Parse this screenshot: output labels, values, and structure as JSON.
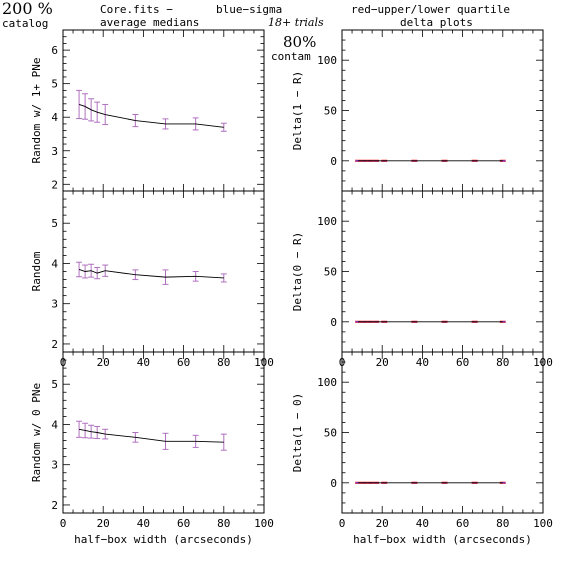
{
  "header": {
    "percent": "200 %",
    "catalog": "catalog",
    "file": "Core.fits  −",
    "medians": "average medians",
    "blue_label": "blue−sigma",
    "red_label": "red−upper/lower quartile",
    "trials": "18+ trials",
    "delta_title": "delta plots",
    "contam_pct": "80%",
    "contam_label": "contam"
  },
  "colors": {
    "blue": "#3a3aff",
    "red": "#ff2a2a",
    "errorbar": "#b070c0",
    "line": "#000000"
  },
  "chart_data": [
    {
      "id": "left-top",
      "type": "line",
      "ylabel": "Random w/ 1+ PNe",
      "xlabel": "",
      "xlim": [
        0,
        100
      ],
      "ylim": [
        1.8,
        6.6
      ],
      "xticks": [],
      "yticks": [
        2,
        3,
        4,
        5,
        6
      ],
      "xticklabels": [],
      "yticklabels": [
        "2",
        "3",
        "4",
        "5",
        "6"
      ],
      "x": [
        8,
        11,
        14,
        17,
        21,
        36,
        51,
        66,
        80
      ],
      "y": [
        4.38,
        4.32,
        4.22,
        4.15,
        4.08,
        3.9,
        3.8,
        3.8,
        3.7
      ],
      "err": [
        0.42,
        0.38,
        0.33,
        0.3,
        0.3,
        0.18,
        0.15,
        0.18,
        0.12
      ]
    },
    {
      "id": "left-mid",
      "type": "line",
      "ylabel": "Random",
      "xlabel": "",
      "xlim": [
        0,
        100
      ],
      "ylim": [
        1.8,
        5.8
      ],
      "xticks": [
        0,
        20,
        40,
        60,
        80,
        100
      ],
      "yticks": [
        2,
        3,
        4,
        5
      ],
      "xticklabels": [
        "0",
        "20",
        "40",
        "60",
        "80",
        "100"
      ],
      "yticklabels": [
        "2",
        "3",
        "4",
        "5"
      ],
      "x": [
        8,
        11,
        14,
        17,
        21,
        36,
        51,
        66,
        80
      ],
      "y": [
        3.85,
        3.8,
        3.82,
        3.76,
        3.82,
        3.72,
        3.66,
        3.68,
        3.64
      ],
      "err": [
        0.18,
        0.16,
        0.16,
        0.14,
        0.14,
        0.12,
        0.18,
        0.12,
        0.1
      ]
    },
    {
      "id": "left-bot",
      "type": "line",
      "ylabel": "Random w/ 0 PNe",
      "xlabel": "half−box width (arcseconds)",
      "xlim": [
        0,
        100
      ],
      "ylim": [
        1.8,
        5.8
      ],
      "xticks": [
        0,
        20,
        40,
        60,
        80,
        100
      ],
      "yticks": [
        2,
        3,
        4,
        5
      ],
      "xticklabels": [
        "0",
        "20",
        "40",
        "60",
        "80",
        "100"
      ],
      "yticklabels": [
        "2",
        "3",
        "4",
        "5"
      ],
      "x": [
        8,
        11,
        14,
        17,
        21,
        36,
        51,
        66,
        80
      ],
      "y": [
        3.88,
        3.85,
        3.82,
        3.8,
        3.76,
        3.68,
        3.58,
        3.58,
        3.56
      ],
      "err": [
        0.2,
        0.18,
        0.16,
        0.15,
        0.12,
        0.12,
        0.2,
        0.15,
        0.2
      ]
    },
    {
      "id": "right-top",
      "type": "line",
      "ylabel": "Delta(1 − R)",
      "xlabel": "",
      "xlim": [
        0,
        100
      ],
      "ylim": [
        -30,
        130
      ],
      "xticks": [],
      "yticks": [
        0,
        50,
        100
      ],
      "xticklabels": [],
      "yticklabels": [
        "0",
        "50",
        "100"
      ],
      "x": [
        8,
        11,
        14,
        17,
        21,
        36,
        51,
        66,
        80
      ],
      "y": [
        0,
        0,
        0,
        0,
        0,
        0,
        0,
        0,
        0
      ],
      "err": [
        0.6,
        0.6,
        0.6,
        0.6,
        0.6,
        0.6,
        0.6,
        0.6,
        0.6
      ]
    },
    {
      "id": "right-mid",
      "type": "line",
      "ylabel": "Delta(0 − R)",
      "xlabel": "",
      "xlim": [
        0,
        100
      ],
      "ylim": [
        -30,
        130
      ],
      "xticks": [
        0,
        20,
        40,
        60,
        80,
        100
      ],
      "yticks": [
        0,
        50,
        100
      ],
      "xticklabels": [
        "0",
        "20",
        "40",
        "60",
        "80",
        "100"
      ],
      "yticklabels": [
        "0",
        "50",
        "100"
      ],
      "x": [
        8,
        11,
        14,
        17,
        21,
        36,
        51,
        66,
        80
      ],
      "y": [
        0,
        0,
        0,
        0,
        0,
        0,
        0,
        0,
        0
      ],
      "err": [
        0.6,
        0.6,
        0.6,
        0.6,
        0.6,
        0.6,
        0.6,
        0.6,
        0.6
      ]
    },
    {
      "id": "right-bot",
      "type": "line",
      "ylabel": "Delta(1 − 0)",
      "xlabel": "half−box width (arcseconds)",
      "xlim": [
        0,
        100
      ],
      "ylim": [
        -30,
        130
      ],
      "xticks": [
        0,
        20,
        40,
        60,
        80,
        100
      ],
      "yticks": [
        0,
        50,
        100
      ],
      "xticklabels": [
        "0",
        "20",
        "40",
        "60",
        "80",
        "100"
      ],
      "yticklabels": [
        "0",
        "50",
        "100"
      ],
      "x": [
        8,
        11,
        14,
        17,
        21,
        36,
        51,
        66,
        80
      ],
      "y": [
        0,
        0,
        0,
        0,
        0,
        0,
        0,
        0,
        0
      ],
      "err": [
        0.6,
        0.6,
        0.6,
        0.6,
        0.6,
        0.6,
        0.6,
        0.6,
        0.6
      ]
    }
  ]
}
